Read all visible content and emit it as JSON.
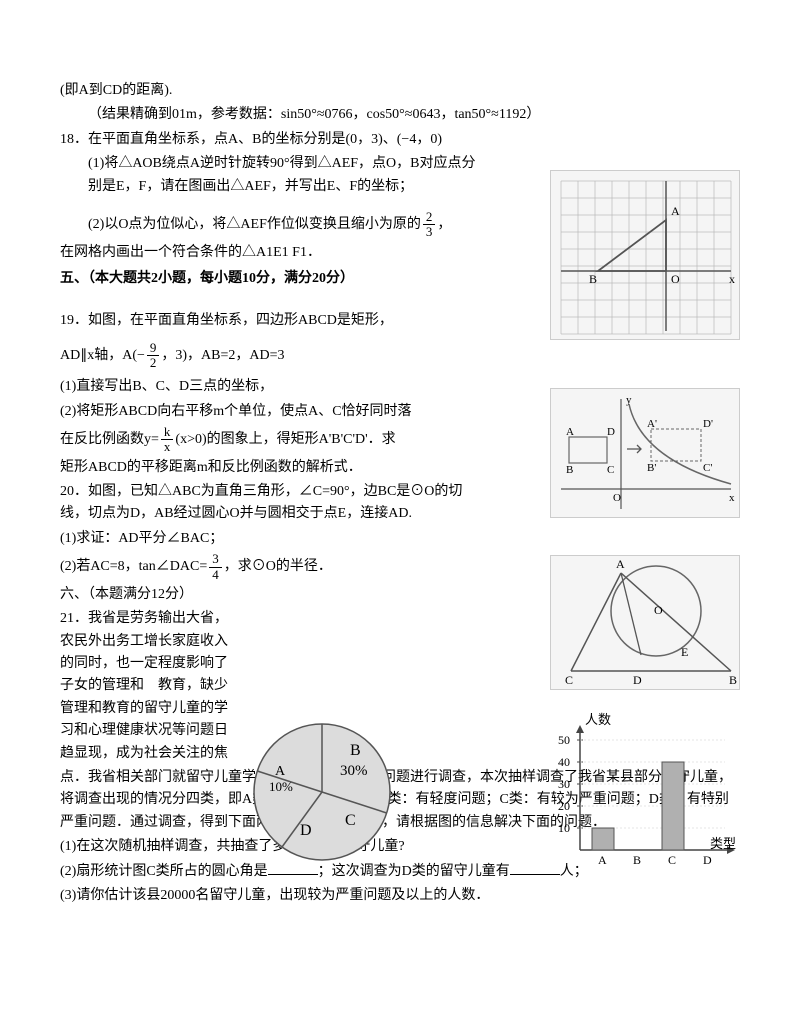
{
  "p1": {
    "l1": "(即A到CD的距离).",
    "l2": "（结果精确到01m，参考数据：sin50°≈0766，cos50°≈0643，tan50°≈1192）"
  },
  "q18": {
    "head": "18．在平面直角坐标系，点A、B的坐标分别是(0，3)、(−4，0)",
    "s1": "(1)将△AOB绕点A逆时针旋转90°得到△AEF，点O，B对应点分别是E，F，请在图画出△AEF，并写出E、F的坐标；",
    "s2a": "(2)以O点为位似心，将△AEF作位似变换且缩小为原的",
    "s2b": "，",
    "s2c": "在网格内画出一个符合条件的△A1E1 F1．",
    "frac": {
      "num": "2",
      "den": "3"
    }
  },
  "sec5": "五、（本大题共2小题，每小题10分，满分20分）",
  "q19": {
    "head": "19．如图，在平面直角坐标系，四边形ABCD是矩形，",
    "l2a": "AD∥x轴，A(−",
    "l2b": "，3)，AB=2，AD=3",
    "frac1": {
      "num": "9",
      "den": "2"
    },
    "s1": "(1)直接写出B、C、D三点的坐标，",
    "s2": "(2)将矩形ABCD向右平移m个单位，使点A、C恰好同时落",
    "s3a": "在反比例函数y=",
    "s3b": "(x>0)的图象上，得矩形A'B'C'D'．求",
    "frac2": {
      "num": "k",
      "den": "x"
    },
    "s4": "矩形ABCD的平移距离m和反比例函数的解析式．"
  },
  "q20": {
    "head": "20．如图，已知△ABC为直角三角形，∠C=90°，边BC是⊙O的切线，切点为D，AB经过圆心O并与圆相交于点E，连接AD.",
    "s1": "(1)求证：AD平分∠BAC；",
    "s2a": "(2)若AC=8，tan∠DAC=",
    "s2b": "，求⊙O的半径．",
    "frac": {
      "num": "3",
      "den": "4"
    }
  },
  "sec6": "六、（本题满分12分）",
  "q21": {
    "intro": "21．我省是劳务输出大省，农民外出务工增长家庭收入的同时，也一定程度影响了子女的管理和　教育，缺少管理和教育的留守儿童的学习和心理健康状况等问题日趋显现，成为社会关注的焦",
    "cont": "点．我省相关部门就留守儿童学习和心理健康状况等问题进行调查，本次抽样调查了我省某县部分留守儿童，将调查出现的情况分四类，即A类：基本情况正常；B类：有轻度问题；C类：有较为严重问题；D类：有特别严重问题．通过调查，得到下面两幅不完整的统计图，请根据图的信息解决下面的问题．",
    "s1": "(1)在这次随机抽样调查，共抽查了多少名学生留守儿童?",
    "s2a": "(2)扇形统计图C类所占的圆心角是",
    "s2b": "；这次调查为D类的留守儿童有",
    "s2c": "人；",
    "s3": "(3)请你估计该县20000名留守儿童，出现较为严重问题及以上的人数．"
  },
  "pie": {
    "labels": {
      "A": "A",
      "Apct": "10%",
      "B": "B",
      "Bpct": "30%",
      "C": "C",
      "D": "D"
    },
    "colors": {
      "fill": "#d8d8d8",
      "stroke": "#555555"
    }
  },
  "bar": {
    "ylabel": "人数",
    "yticks": [
      "10",
      "20",
      "30",
      "40",
      "50"
    ],
    "xticks": [
      "A",
      "B",
      "C",
      "D"
    ],
    "xlabel": "类型",
    "values": {
      "A": 10,
      "C": 40
    },
    "colors": {
      "bar": "#b0b0b0",
      "axis": "#444444",
      "grid": "#999999"
    }
  },
  "fig1": {
    "labels": {
      "A": "A",
      "B": "B",
      "O": "O",
      "x": "x"
    },
    "colors": {
      "grid": "#bbbbbb",
      "line": "#555555"
    },
    "grid": {
      "cols": 10,
      "rows": 9
    }
  },
  "fig2": {
    "labels": {
      "A": "A",
      "B": "B",
      "C": "C",
      "D": "D",
      "Ap": "A'",
      "Bp": "B'",
      "Cp": "C'",
      "Dp": "D'",
      "O": "O",
      "x": "x",
      "y": "y"
    },
    "colors": {
      "axis": "#555555",
      "rect": "#666666",
      "curve": "#666666"
    }
  },
  "fig3": {
    "labels": {
      "A": "A",
      "B": "B",
      "C": "C",
      "D": "D",
      "E": "E",
      "O": "O"
    },
    "colors": {
      "circle": "#666666",
      "line": "#555555"
    }
  }
}
